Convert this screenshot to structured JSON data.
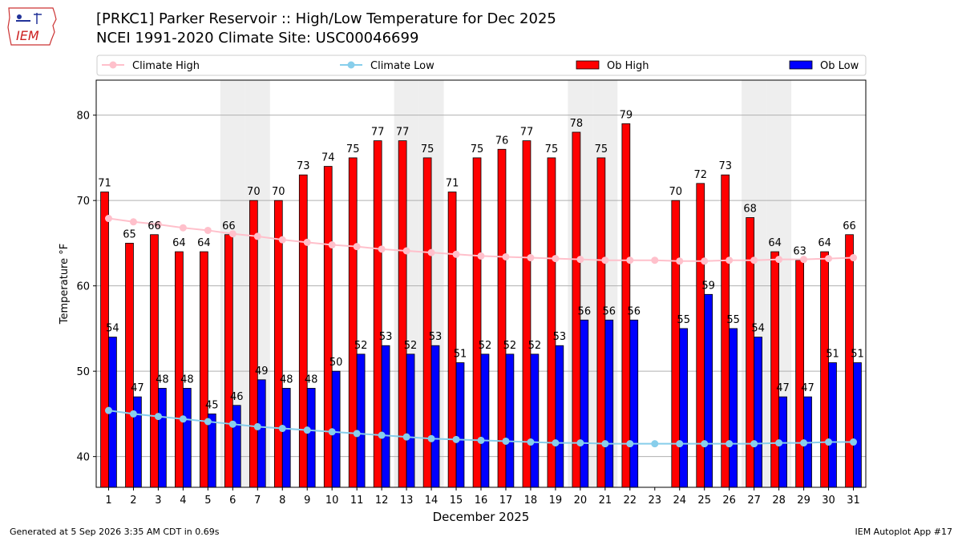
{
  "header": {
    "logo_text": "IEM",
    "title_line1": "[PRKC1] Parker Reservoir :: High/Low Temperature for Dec 2025",
    "title_line2": "NCEI 1991-2020 Climate Site: USC00046699"
  },
  "footer": {
    "generated": "Generated at 5 Sep 2026 3:35 AM CDT in 0.69s",
    "app": "IEM Autoplot App #17"
  },
  "chart_data": {
    "type": "bar",
    "xlabel": "December 2025",
    "ylabel": "Temperature °F",
    "ylim": [
      36.4,
      84.1
    ],
    "yticks": [
      40,
      50,
      60,
      70,
      80
    ],
    "grid": true,
    "legend_position": "top",
    "categories": [
      "1",
      "2",
      "3",
      "4",
      "5",
      "6",
      "7",
      "8",
      "9",
      "10",
      "11",
      "12",
      "13",
      "14",
      "15",
      "16",
      "17",
      "18",
      "19",
      "20",
      "21",
      "22",
      "23",
      "24",
      "25",
      "26",
      "27",
      "28",
      "29",
      "30",
      "31"
    ],
    "weekend_shaded_days": [
      6,
      7,
      13,
      14,
      20,
      21,
      27,
      28
    ],
    "series": [
      {
        "name": "Climate High",
        "kind": "line",
        "color": "#ffc0cb",
        "values": [
          67.9,
          67.5,
          67.2,
          66.8,
          66.5,
          66.1,
          65.8,
          65.4,
          65.1,
          64.8,
          64.6,
          64.3,
          64.1,
          63.9,
          63.7,
          63.5,
          63.4,
          63.3,
          63.2,
          63.1,
          63.0,
          63.0,
          63.0,
          62.9,
          62.9,
          63.0,
          63.0,
          63.1,
          63.1,
          63.2,
          63.3
        ]
      },
      {
        "name": "Climate Low",
        "kind": "line",
        "color": "#87ceeb",
        "values": [
          45.4,
          45.0,
          44.7,
          44.4,
          44.1,
          43.8,
          43.5,
          43.3,
          43.1,
          42.9,
          42.7,
          42.5,
          42.3,
          42.1,
          42.0,
          41.9,
          41.8,
          41.7,
          41.6,
          41.6,
          41.5,
          41.5,
          41.5,
          41.5,
          41.5,
          41.5,
          41.5,
          41.6,
          41.6,
          41.7,
          41.7
        ]
      },
      {
        "name": "Ob High",
        "kind": "bar",
        "color": "#ff0000",
        "values": [
          71,
          65,
          66,
          64,
          64,
          66,
          70,
          70,
          73,
          74,
          75,
          77,
          77,
          75,
          71,
          75,
          76,
          77,
          75,
          78,
          75,
          79,
          null,
          70,
          72,
          73,
          68,
          64,
          63,
          64,
          66
        ]
      },
      {
        "name": "Ob Low",
        "kind": "bar",
        "color": "#0000ff",
        "values": [
          54,
          47,
          48,
          48,
          45,
          46,
          49,
          48,
          48,
          50,
          52,
          53,
          52,
          53,
          51,
          52,
          52,
          52,
          53,
          56,
          56,
          56,
          null,
          55,
          59,
          55,
          54,
          47,
          47,
          51,
          51
        ]
      }
    ]
  }
}
